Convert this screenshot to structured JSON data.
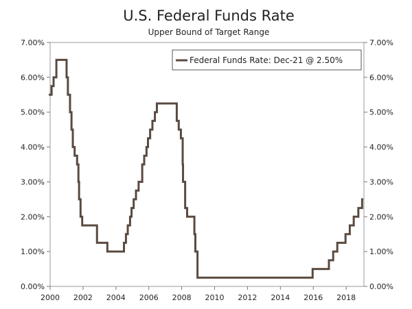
{
  "chart_data": {
    "type": "line",
    "title": "U.S. Federal Funds Rate",
    "subtitle": "Upper Bound of Target Range",
    "xlabel": "",
    "ylabel": "",
    "xlim": [
      2000,
      2019.08
    ],
    "ylim": [
      0,
      7
    ],
    "x_ticks": [
      2000,
      2002,
      2004,
      2006,
      2008,
      2010,
      2012,
      2014,
      2016,
      2018
    ],
    "x_tick_labels": [
      "2000",
      "2002",
      "2004",
      "2006",
      "2008",
      "2010",
      "2012",
      "2014",
      "2016",
      "2018"
    ],
    "y_ticks": [
      0,
      1,
      2,
      3,
      4,
      5,
      6,
      7
    ],
    "y_tick_labels_left": [
      "0.00%",
      "1.00%",
      "2.00%",
      "3.00%",
      "4.00%",
      "5.00%",
      "6.00%",
      "7.00%"
    ],
    "y_tick_labels_right": [
      "0.00%",
      "1.00%",
      "2.00%",
      "3.00%",
      "4.00%",
      "5.00%",
      "6.00%",
      "7.00%"
    ],
    "legend": {
      "label": "Federal Funds Rate: Dec-21 @ 2.50%",
      "placement": "top-right"
    },
    "grid": false,
    "series": [
      {
        "name": "Federal Funds Rate: Dec-21 @ 2.50%",
        "color": "#5a4a3f",
        "step": true,
        "points": [
          [
            1999.92,
            5.5
          ],
          [
            2000.09,
            5.75
          ],
          [
            2000.21,
            6.0
          ],
          [
            2000.38,
            6.5
          ],
          [
            2001.0,
            6.0
          ],
          [
            2001.08,
            5.5
          ],
          [
            2001.21,
            5.0
          ],
          [
            2001.3,
            4.5
          ],
          [
            2001.38,
            4.0
          ],
          [
            2001.49,
            3.75
          ],
          [
            2001.64,
            3.5
          ],
          [
            2001.72,
            3.0
          ],
          [
            2001.76,
            2.5
          ],
          [
            2001.85,
            2.0
          ],
          [
            2001.95,
            1.75
          ],
          [
            2002.85,
            1.25
          ],
          [
            2003.48,
            1.0
          ],
          [
            2004.49,
            1.25
          ],
          [
            2004.61,
            1.5
          ],
          [
            2004.72,
            1.75
          ],
          [
            2004.86,
            2.0
          ],
          [
            2004.95,
            2.25
          ],
          [
            2005.08,
            2.5
          ],
          [
            2005.22,
            2.75
          ],
          [
            2005.38,
            3.0
          ],
          [
            2005.6,
            3.5
          ],
          [
            2005.72,
            3.75
          ],
          [
            2005.86,
            4.0
          ],
          [
            2005.95,
            4.25
          ],
          [
            2006.08,
            4.5
          ],
          [
            2006.22,
            4.75
          ],
          [
            2006.37,
            5.0
          ],
          [
            2006.49,
            5.25
          ],
          [
            2007.7,
            4.75
          ],
          [
            2007.82,
            4.5
          ],
          [
            2007.95,
            4.25
          ],
          [
            2008.06,
            3.5
          ],
          [
            2008.08,
            3.0
          ],
          [
            2008.21,
            2.25
          ],
          [
            2008.33,
            2.0
          ],
          [
            2008.77,
            1.5
          ],
          [
            2008.83,
            1.0
          ],
          [
            2008.96,
            0.25
          ],
          [
            2015.96,
            0.5
          ],
          [
            2016.95,
            0.75
          ],
          [
            2017.21,
            1.0
          ],
          [
            2017.46,
            1.25
          ],
          [
            2017.96,
            1.5
          ],
          [
            2018.22,
            1.75
          ],
          [
            2018.46,
            2.0
          ],
          [
            2018.74,
            2.25
          ],
          [
            2018.97,
            2.5
          ],
          [
            2019.04,
            2.5
          ]
        ]
      }
    ]
  }
}
